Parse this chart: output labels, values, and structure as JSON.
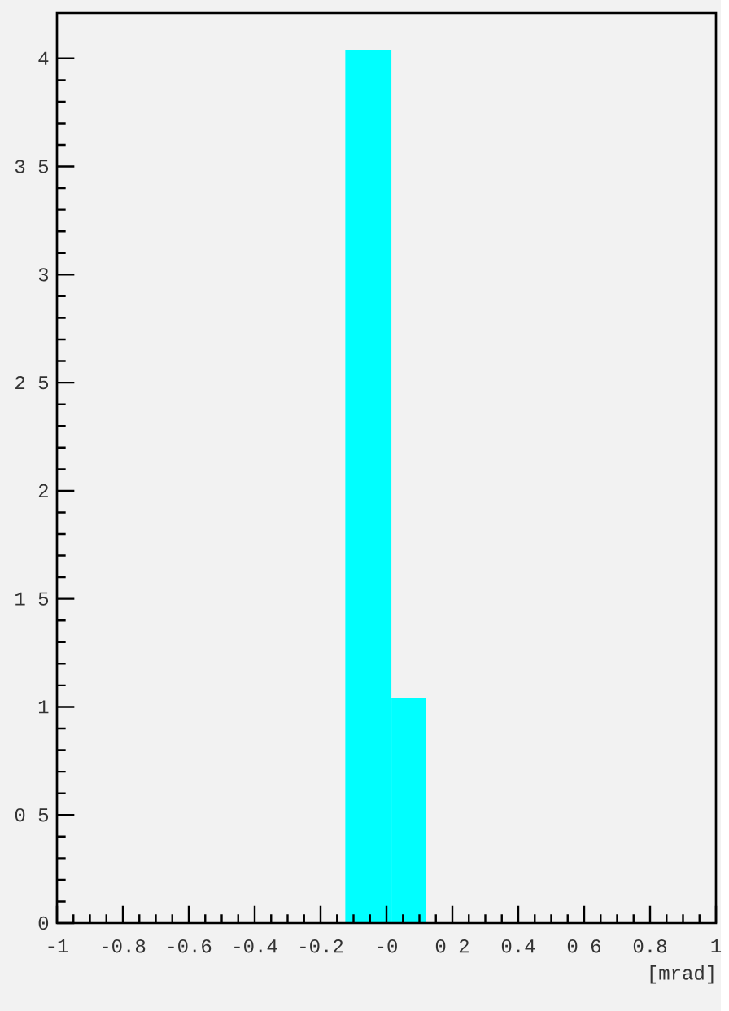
{
  "chart_data": {
    "type": "histogram",
    "xlabel": "[mrad]",
    "bins": [
      -0.125,
      0.015,
      0.12
    ],
    "values": [
      4.04,
      1.04
    ],
    "color": "#00ffff",
    "xlim": [
      -1,
      1
    ],
    "ylim": [
      0,
      4.21
    ],
    "xticks": [
      -1,
      -0.8,
      -0.6,
      -0.4,
      -0.2,
      {
        "value": 0,
        "label": "-0"
      },
      {
        "value": 0.2,
        "label": "0 2"
      },
      0.4,
      {
        "value": 0.6,
        "label": "0 6"
      },
      0.8,
      1
    ],
    "yticks": [
      0,
      {
        "value": 0.5,
        "label": "0 5"
      },
      1,
      {
        "value": 1.5,
        "label": "1 5"
      },
      2,
      {
        "value": 2.5,
        "label": "2 5"
      },
      3,
      {
        "value": 3.5,
        "label": "3 5"
      },
      4
    ],
    "grid": false
  }
}
